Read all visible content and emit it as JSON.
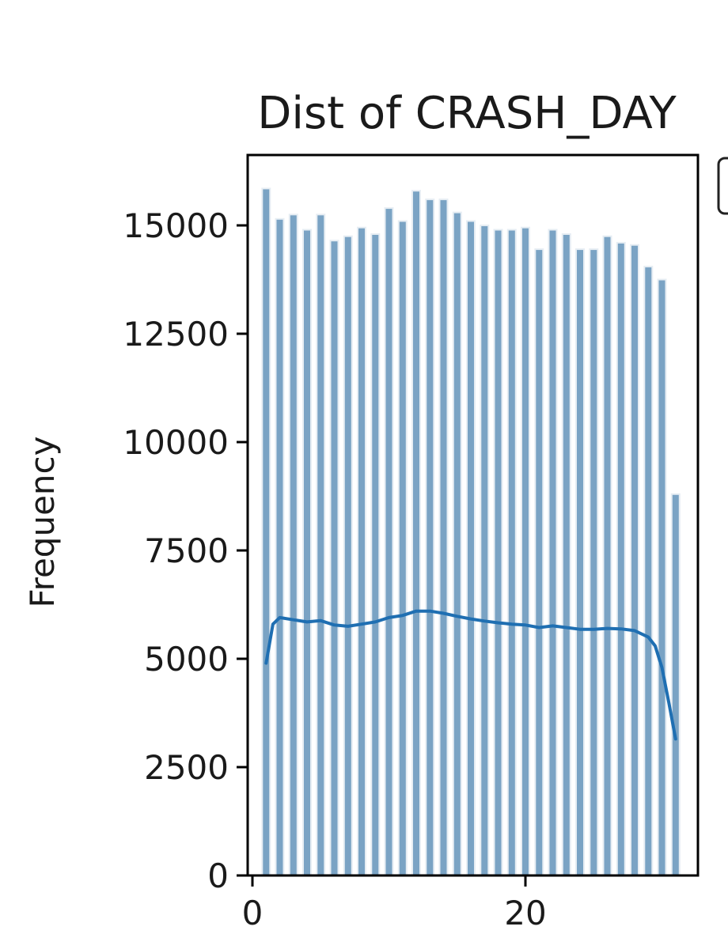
{
  "chart_data": {
    "type": "bar",
    "title": "Dist of CRASH_DAY",
    "xlabel": "",
    "ylabel": "Frequency",
    "x": [
      1,
      2,
      3,
      4,
      5,
      6,
      7,
      8,
      9,
      10,
      11,
      12,
      13,
      14,
      15,
      16,
      17,
      18,
      19,
      20,
      21,
      22,
      23,
      24,
      25,
      26,
      27,
      28,
      29,
      30,
      31
    ],
    "values": [
      15850,
      15150,
      15250,
      14900,
      15250,
      14650,
      14750,
      14950,
      14800,
      15400,
      15100,
      15800,
      15600,
      15600,
      15300,
      15100,
      15000,
      14900,
      14900,
      14950,
      14450,
      14900,
      14800,
      14450,
      14450,
      14750,
      14600,
      14550,
      14050,
      13750,
      8800
    ],
    "kde": {
      "x": [
        1,
        1.5,
        2,
        3,
        4,
        5,
        6,
        7,
        8,
        9,
        10,
        11,
        12,
        13,
        14,
        15,
        16,
        17,
        18,
        19,
        20,
        21,
        22,
        23,
        24,
        25,
        26,
        27,
        28,
        29,
        29.5,
        30,
        30.5,
        31
      ],
      "y": [
        4900,
        5800,
        5950,
        5900,
        5850,
        5880,
        5780,
        5750,
        5800,
        5850,
        5950,
        6000,
        6100,
        6100,
        6050,
        5980,
        5920,
        5870,
        5830,
        5800,
        5780,
        5720,
        5760,
        5720,
        5680,
        5680,
        5700,
        5690,
        5650,
        5500,
        5300,
        4800,
        4000,
        3150
      ]
    },
    "ylim": [
      0,
      16500
    ],
    "yticks": [
      "0",
      "2500",
      "5000",
      "7500",
      "10000",
      "12500",
      "15000"
    ],
    "xticks": [
      "0",
      "20"
    ],
    "grid": false
  }
}
